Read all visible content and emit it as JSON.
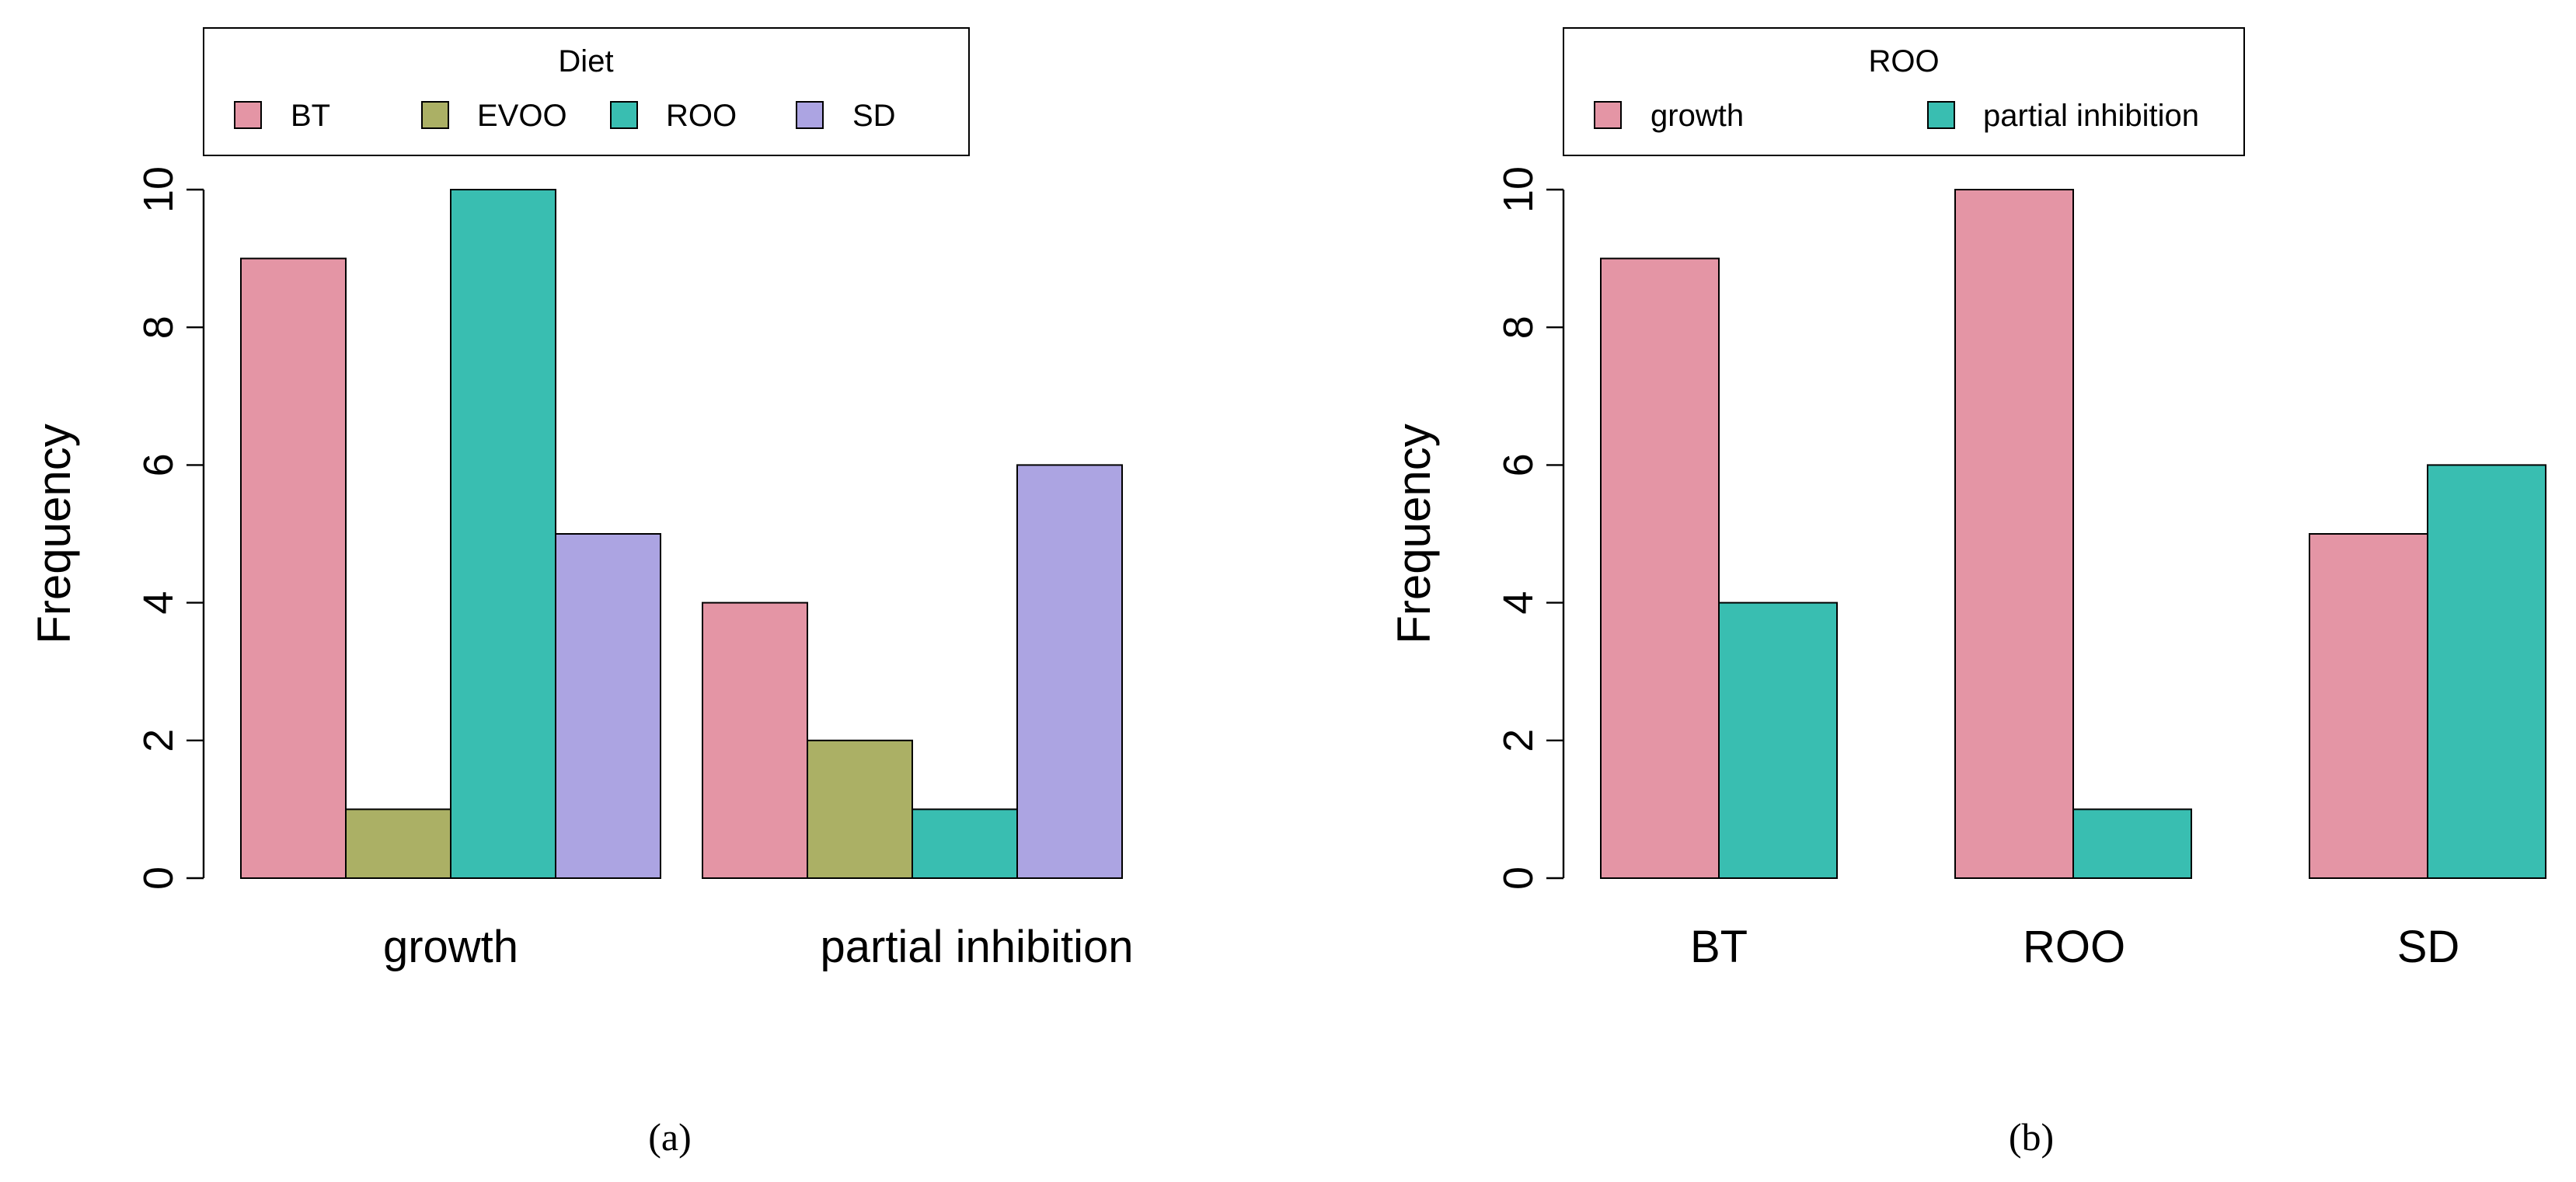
{
  "chart_data": [
    {
      "type": "bar",
      "panel_label": "(a)",
      "categories": [
        "growth",
        "partial inhibition"
      ],
      "series": [
        {
          "name": "BT",
          "values": [
            9,
            4
          ],
          "color": "#E495A5"
        },
        {
          "name": "EVOO",
          "values": [
            1,
            2
          ],
          "color": "#ABB065"
        },
        {
          "name": "ROO",
          "values": [
            10,
            1
          ],
          "color": "#39BEB1"
        },
        {
          "name": "SD",
          "values": [
            5,
            6
          ],
          "color": "#ACA4E2"
        }
      ],
      "legend_title": "Diet",
      "legend_position": "top",
      "xlabel": "",
      "ylabel": "Frequency",
      "ylim": [
        0,
        10
      ],
      "yticks": [
        0,
        2,
        4,
        6,
        8,
        10
      ],
      "grid": false
    },
    {
      "type": "bar",
      "panel_label": "(b)",
      "categories": [
        "BT",
        "ROO",
        "SD"
      ],
      "series": [
        {
          "name": "growth",
          "values": [
            9,
            10,
            5
          ],
          "color": "#E495A5"
        },
        {
          "name": "partial inhibition",
          "values": [
            4,
            1,
            6
          ],
          "color": "#39BEB1"
        }
      ],
      "legend_title": "ROO",
      "legend_position": "top",
      "xlabel": "",
      "ylabel": "Frequency",
      "ylim": [
        0,
        10
      ],
      "yticks": [
        0,
        2,
        4,
        6,
        8,
        10
      ],
      "grid": false
    }
  ]
}
